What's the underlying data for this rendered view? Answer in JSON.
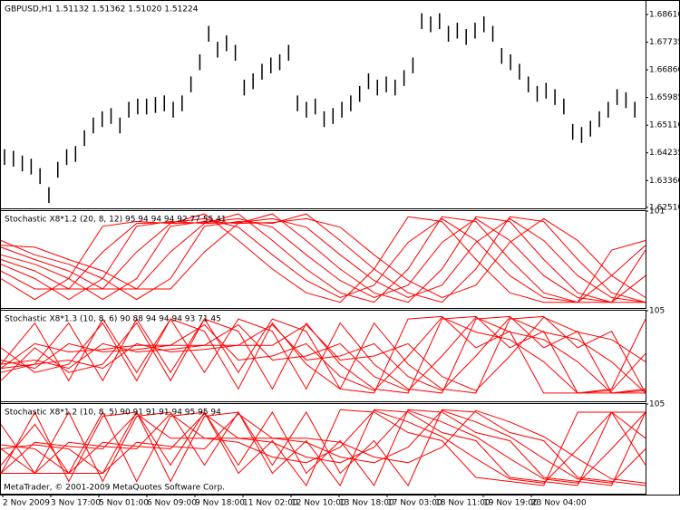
{
  "chart_data": [
    {
      "type": "ohlc",
      "title": "GBPUSD,H1  1.51132 1.51362 1.51020 1.51224",
      "color": "#000000",
      "high": [
        1.6435,
        1.643,
        1.6415,
        1.6405,
        1.6375,
        1.6315,
        1.6395,
        1.6435,
        1.6445,
        1.6495,
        1.6535,
        1.6555,
        1.6565,
        1.6535,
        1.6585,
        1.6595,
        1.6595,
        1.66,
        1.6605,
        1.6585,
        1.6605,
        1.6665,
        1.6735,
        1.6825,
        1.6775,
        1.6795,
        1.6765,
        1.6655,
        1.6675,
        1.6705,
        1.6725,
        1.6735,
        1.6765,
        1.6605,
        1.6585,
        1.6595,
        1.6555,
        1.6565,
        1.6585,
        1.6605,
        1.6635,
        1.6675,
        1.6655,
        1.6665,
        1.6655,
        1.6685,
        1.6725,
        1.6865,
        1.6855,
        1.6865,
        1.6825,
        1.6835,
        1.6815,
        1.6835,
        1.6855,
        1.6825,
        1.6755,
        1.6735,
        1.6705,
        1.6665,
        1.6635,
        1.6645,
        1.6625,
        1.6595,
        1.6515,
        1.6505,
        1.6525,
        1.6555,
        1.6585,
        1.6625,
        1.6615,
        1.6585
      ],
      "low": [
        1.6385,
        1.638,
        1.6365,
        1.6355,
        1.6325,
        1.6265,
        1.6345,
        1.6385,
        1.6395,
        1.6445,
        1.6485,
        1.6505,
        1.6515,
        1.6485,
        1.6535,
        1.6545,
        1.6545,
        1.655,
        1.6555,
        1.6535,
        1.6555,
        1.6615,
        1.6685,
        1.6775,
        1.6725,
        1.6745,
        1.6715,
        1.6605,
        1.6625,
        1.6655,
        1.6675,
        1.6685,
        1.6715,
        1.6555,
        1.6535,
        1.6545,
        1.6505,
        1.6515,
        1.6535,
        1.6555,
        1.6585,
        1.6625,
        1.6605,
        1.6615,
        1.6605,
        1.6635,
        1.6675,
        1.6815,
        1.6805,
        1.6815,
        1.6775,
        1.6785,
        1.6765,
        1.6785,
        1.6805,
        1.6775,
        1.6705,
        1.6685,
        1.6655,
        1.6615,
        1.6585,
        1.6595,
        1.6575,
        1.6545,
        1.6465,
        1.6455,
        1.6475,
        1.6505,
        1.6535,
        1.6575,
        1.6565,
        1.6535
      ],
      "ylim": [
        1.6248,
        1.6904
      ],
      "yticks": [
        {
          "value": 1.6861,
          "label": "1.68610"
        },
        {
          "value": 1.67735,
          "label": "1.67735"
        },
        {
          "value": 1.6686,
          "label": "1.66860"
        },
        {
          "value": 1.65985,
          "label": "1.65985"
        },
        {
          "value": 1.6511,
          "label": "1.65110"
        },
        {
          "value": 1.64235,
          "label": "1.64235"
        },
        {
          "value": 1.6336,
          "label": "1.63360"
        },
        {
          "value": 1.6251,
          "label": "1.62510"
        }
      ]
    },
    {
      "type": "line",
      "title": "Stochastic X8*1.2 (20, 8, 12) 95 94 94 94 92 77 55 41",
      "ylim": [
        -1,
        101
      ],
      "yticks": [
        101
      ],
      "series": [
        {
          "color": "#ff0000",
          "values": [
            30,
            8,
            30,
            85,
            90,
            88,
            98,
            70,
            40,
            15,
            5,
            40,
            95,
            90,
            50,
            15,
            5,
            5,
            60,
            70
          ]
        },
        {
          "color": "#ff0000",
          "values": [
            38,
            19,
            19,
            58,
            88,
            89,
            93,
            84,
            55,
            28,
            10,
            23,
            68,
            93,
            70,
            33,
            10,
            5,
            33,
            65
          ]
        },
        {
          "color": "#ff0000",
          "values": [
            45,
            30,
            8,
            30,
            85,
            90,
            88,
            98,
            70,
            40,
            15,
            5,
            40,
            95,
            90,
            50,
            15,
            5,
            5,
            60
          ]
        },
        {
          "color": "#ff0000",
          "values": [
            50,
            38,
            19,
            19,
            58,
            88,
            89,
            93,
            84,
            55,
            28,
            10,
            23,
            68,
            93,
            70,
            33,
            10,
            5,
            33
          ]
        },
        {
          "color": "#ff0000",
          "values": [
            55,
            45,
            30,
            8,
            30,
            85,
            90,
            88,
            98,
            70,
            40,
            15,
            5,
            40,
            95,
            90,
            50,
            15,
            5,
            5
          ]
        },
        {
          "color": "#ff0000",
          "values": [
            63,
            50,
            38,
            19,
            19,
            58,
            88,
            89,
            93,
            84,
            55,
            28,
            10,
            23,
            68,
            93,
            70,
            33,
            10,
            5
          ]
        },
        {
          "color": "#ff0000",
          "values": [
            70,
            55,
            45,
            30,
            8,
            30,
            85,
            90,
            88,
            98,
            70,
            40,
            15,
            5,
            40,
            95,
            90,
            50,
            15,
            5
          ]
        },
        {
          "color": "#ff0000",
          "values": [
            65,
            63,
            50,
            38,
            19,
            19,
            58,
            88,
            89,
            93,
            84,
            55,
            28,
            10,
            23,
            68,
            93,
            70,
            33,
            10
          ]
        }
      ]
    },
    {
      "type": "line",
      "title": "Stochastic X8*1.3 (10, 8, 6) 90 88 94 94 94 93 71 45",
      "ylim": [
        -5,
        105
      ],
      "yticks": [
        105
      ],
      "series": [
        {
          "color": "#ff0000",
          "values": [
            40,
            90,
            20,
            95,
            30,
            95,
            80,
            10,
            90,
            40,
            10,
            5,
            95,
            98,
            60,
            80,
            5,
            5,
            10,
            95
          ]
        },
        {
          "color": "#ff0000",
          "values": [
            35,
            65,
            55,
            58,
            63,
            63,
            88,
            45,
            50,
            65,
            25,
            8,
            50,
            97,
            79,
            70,
            43,
            5,
            8,
            53
          ]
        },
        {
          "color": "#ff0000",
          "values": [
            30,
            40,
            90,
            20,
            95,
            30,
            95,
            80,
            10,
            90,
            40,
            10,
            5,
            95,
            98,
            60,
            80,
            5,
            5,
            10
          ]
        },
        {
          "color": "#ff0000",
          "values": [
            45,
            35,
            65,
            55,
            58,
            63,
            63,
            88,
            45,
            50,
            65,
            25,
            8,
            50,
            97,
            79,
            70,
            43,
            5,
            8
          ]
        },
        {
          "color": "#ff0000",
          "values": [
            60,
            30,
            40,
            90,
            20,
            95,
            30,
            95,
            80,
            10,
            90,
            40,
            10,
            5,
            95,
            98,
            60,
            80,
            5,
            5
          ]
        },
        {
          "color": "#ff0000",
          "values": [
            40,
            45,
            35,
            65,
            55,
            58,
            63,
            63,
            88,
            45,
            50,
            65,
            25,
            8,
            50,
            97,
            79,
            70,
            43,
            5
          ]
        },
        {
          "color": "#ff0000",
          "values": [
            20,
            60,
            30,
            40,
            90,
            20,
            95,
            30,
            95,
            80,
            10,
            90,
            40,
            10,
            5,
            95,
            98,
            60,
            80,
            5
          ]
        },
        {
          "color": "#ff0000",
          "values": [
            35,
            40,
            45,
            35,
            65,
            55,
            58,
            63,
            63,
            88,
            45,
            50,
            65,
            25,
            8,
            50,
            97,
            79,
            70,
            43
          ]
        }
      ]
    },
    {
      "type": "line",
      "title": "Stochastic X8*1.2 (10, 8, 5) 90 91 91 91 94 95 95 94",
      "ylim": [
        -5,
        105
      ],
      "yticks": [
        105
      ],
      "series": [
        {
          "color": "#ff0000",
          "values": [
            20,
            95,
            10,
            90,
            95,
            30,
            95,
            20,
            60,
            5,
            98,
            95,
            70,
            60,
            15,
            10,
            5,
            95,
            95,
            30
          ]
        },
        {
          "color": "#ff0000",
          "values": [
            20,
            58,
            53,
            50,
            93,
            63,
            63,
            58,
            40,
            33,
            52,
            97,
            83,
            65,
            38,
            13,
            8,
            50,
            95,
            63
          ]
        },
        {
          "color": "#ff0000",
          "values": [
            20,
            20,
            95,
            10,
            90,
            95,
            30,
            95,
            20,
            60,
            5,
            98,
            95,
            70,
            60,
            15,
            10,
            5,
            95,
            95
          ]
        },
        {
          "color": "#ff0000",
          "values": [
            50,
            20,
            58,
            53,
            50,
            93,
            63,
            63,
            58,
            40,
            33,
            52,
            97,
            83,
            65,
            38,
            13,
            8,
            50,
            95
          ]
        },
        {
          "color": "#ff0000",
          "values": [
            80,
            20,
            20,
            95,
            10,
            90,
            95,
            30,
            95,
            20,
            60,
            5,
            98,
            95,
            70,
            60,
            15,
            10,
            5,
            95
          ]
        },
        {
          "color": "#ff0000",
          "values": [
            55,
            50,
            20,
            58,
            53,
            50,
            93,
            63,
            63,
            58,
            40,
            33,
            52,
            97,
            83,
            65,
            38,
            13,
            8,
            50
          ]
        },
        {
          "color": "#ff0000",
          "values": [
            30,
            80,
            20,
            20,
            95,
            10,
            90,
            95,
            30,
            95,
            20,
            60,
            5,
            98,
            95,
            70,
            60,
            15,
            10,
            5
          ]
        },
        {
          "color": "#ff0000",
          "values": [
            50,
            55,
            50,
            20,
            58,
            53,
            50,
            93,
            63,
            63,
            58,
            40,
            33,
            52,
            97,
            83,
            65,
            38,
            13,
            8
          ]
        }
      ]
    }
  ],
  "x_axis_labels": [
    "2 Nov 2009",
    "3 Nov 17:00",
    "5 Nov 01:00",
    "6 Nov 09:00",
    "9 Nov 18:00",
    "11 Nov 02:00",
    "12 Nov 10:00",
    "13 Nov 18:00",
    "17 Nov 03:00",
    "18 Nov 11:00",
    "19 Nov 19:00",
    "23 Nov 04:00"
  ],
  "copyright": "MetaTrader, © 2001-2009 MetaQuotes Software Corp."
}
